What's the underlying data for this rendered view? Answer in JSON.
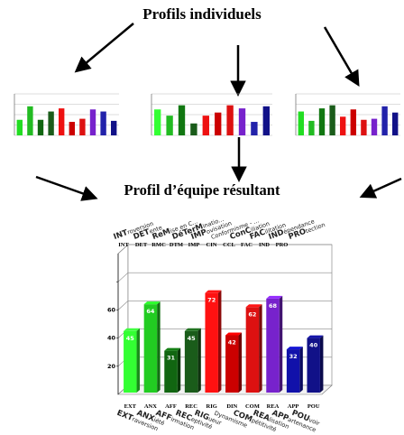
{
  "header": {
    "title_individual": "Profils individuels",
    "title_team": "Profil d’équipe résultant"
  },
  "labels_top": [
    {
      "code": "INT",
      "prefix": "INT",
      "rest": "roversion"
    },
    {
      "code": "DET",
      "prefix": "DET",
      "rest": "ente"
    },
    {
      "code": "RMC",
      "prefix": "ReM",
      "rest": "ise en C..."
    },
    {
      "code": "DTM",
      "prefix": "DéTerM",
      "rest": "inatio..."
    },
    {
      "code": "IMP",
      "prefix": "IMP",
      "rest": "ovisation"
    },
    {
      "code": "CIN",
      "prefix": "",
      "rest": "Conformisme - ..."
    },
    {
      "code": "CCL",
      "prefix": "ConC",
      "rest": "iliation"
    },
    {
      "code": "FAC",
      "prefix": "FAC",
      "rest": "ilitation"
    },
    {
      "code": "IND",
      "prefix": "IND",
      "rest": "épendance"
    },
    {
      "code": "PRO",
      "prefix": "PRO",
      "rest": "tection"
    }
  ],
  "labels_bottom": [
    {
      "code": "EXT",
      "prefix": "EXT",
      "rest": "raversion"
    },
    {
      "code": "ANX",
      "prefix": "ANX",
      "rest": "iété"
    },
    {
      "code": "AFF",
      "prefix": "AFF",
      "rest": "irmation"
    },
    {
      "code": "REC",
      "prefix": "REC",
      "rest": "eptivité"
    },
    {
      "code": "RIG",
      "prefix": "RIG",
      "rest": "ueur"
    },
    {
      "code": "DIN",
      "prefix": "",
      "rest": "Dynamisme"
    },
    {
      "code": "COM",
      "prefix": "COM",
      "rest": "pétitivité"
    },
    {
      "code": "REA",
      "prefix": "REA",
      "rest": "lisation"
    },
    {
      "code": "APP",
      "prefix": "APP",
      "rest": "artenance"
    },
    {
      "code": "POU",
      "prefix": "POU",
      "rest": "voir"
    }
  ],
  "chart_data": [
    {
      "type": "bar",
      "title": "",
      "categories": [
        "EXT",
        "ANX",
        "AFF",
        "REC",
        "RIG",
        "DIN",
        "COM",
        "REA",
        "APP",
        "POU"
      ],
      "values": [
        45,
        64,
        31,
        45,
        72,
        42,
        62,
        68,
        32,
        40
      ],
      "colors": [
        "#33ff33",
        "#22cc22",
        "#116611",
        "#1a5c1a",
        "#ff1111",
        "#cc0000",
        "#dd1111",
        "#7722cc",
        "#1111aa",
        "#111188"
      ],
      "ylim": [
        0,
        100
      ],
      "yticks": [
        20,
        40,
        60,
        80
      ],
      "ytick_labels": [
        "20",
        "40",
        "60",
        ""
      ],
      "grid": true
    }
  ],
  "mini_charts": [
    {
      "type": "bar",
      "values": [
        30,
        56,
        30,
        46,
        52,
        26,
        32,
        50,
        46,
        28
      ],
      "colors": [
        "#22dd22",
        "#22bb22",
        "#116611",
        "#1a5c1a",
        "#ee1111",
        "#cc0000",
        "#dd1111",
        "#7722cc",
        "#2222aa",
        "#111188"
      ],
      "ylim": [
        0,
        80
      ]
    },
    {
      "type": "bar",
      "values": [
        50,
        38,
        58,
        23,
        38,
        44,
        58,
        52,
        26,
        56
      ],
      "colors": [
        "#33ff33",
        "#22bb22",
        "#117711",
        "#1a5c1a",
        "#ee1111",
        "#cc0000",
        "#dd1111",
        "#7722cc",
        "#2222aa",
        "#111188"
      ],
      "ylim": [
        0,
        80
      ]
    },
    {
      "type": "bar",
      "values": [
        46,
        28,
        52,
        58,
        36,
        50,
        30,
        32,
        56,
        44
      ],
      "colors": [
        "#22dd22",
        "#22bb22",
        "#117711",
        "#1a5c1a",
        "#ee1111",
        "#cc0000",
        "#dd1111",
        "#7722cc",
        "#2222aa",
        "#111188"
      ],
      "ylim": [
        0,
        80
      ]
    }
  ]
}
